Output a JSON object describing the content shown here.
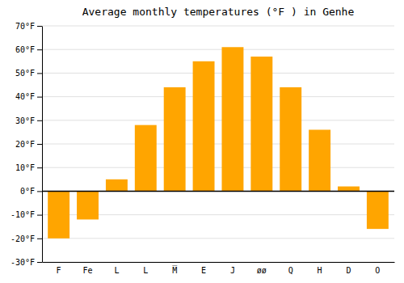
{
  "chart_data": {
    "type": "bar",
    "title": "Average monthly temperatures (°F ) in Genhe",
    "categories": [
      "F",
      "Fe",
      "L",
      "L",
      "M̅",
      "E",
      "J",
      "øø",
      "Q",
      "H",
      "D",
      "O"
    ],
    "values": [
      -20,
      -12,
      5,
      28,
      44,
      55,
      61,
      57,
      44,
      26,
      2,
      -16
    ],
    "color": "#FFA500",
    "ylim": [
      -30,
      70
    ],
    "yticks": [
      {
        "value": -30,
        "label": "-30°F"
      },
      {
        "value": -20,
        "label": "-20°F"
      },
      {
        "value": -10,
        "label": "-10°F"
      },
      {
        "value": 0,
        "label": "0°F"
      },
      {
        "value": 10,
        "label": "10°F"
      },
      {
        "value": 20,
        "label": "20°F"
      },
      {
        "value": 30,
        "label": "30°F"
      },
      {
        "value": 40,
        "label": "40°F"
      },
      {
        "value": 50,
        "label": "50°F"
      },
      {
        "value": 60,
        "label": "60°F"
      },
      {
        "value": 70,
        "label": "70°F"
      }
    ],
    "grid": true
  }
}
